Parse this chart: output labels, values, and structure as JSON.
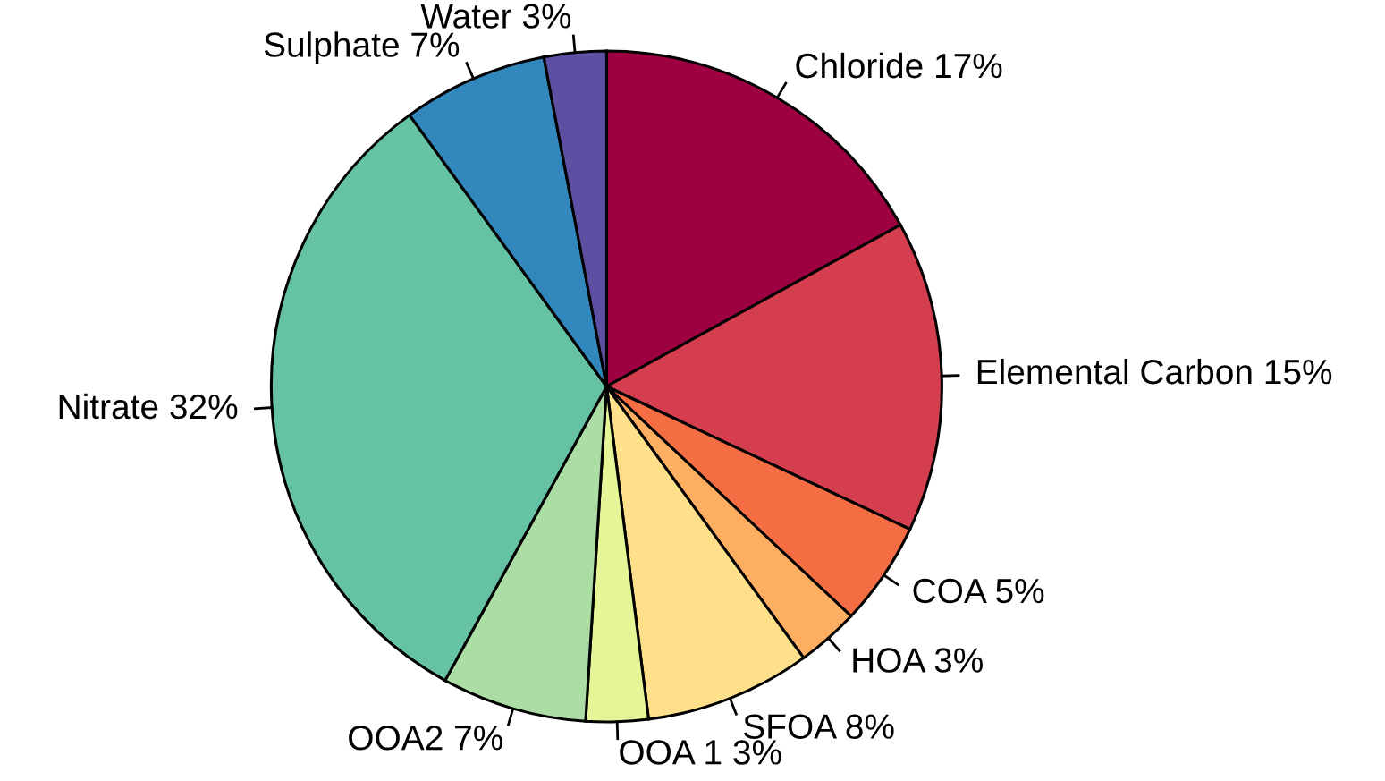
{
  "chart_data": {
    "type": "pie",
    "categories": [
      "Chloride",
      "Elemental Carbon",
      "COA",
      "HOA",
      "SFOA",
      "OOA 1",
      "OOA2",
      "Nitrate",
      "Sulphate",
      "Water"
    ],
    "values": [
      17,
      15,
      5,
      3,
      8,
      3,
      7,
      32,
      7,
      3
    ],
    "value_labels": [
      "17%",
      "15%",
      "5%",
      "3%",
      "8%",
      "3%",
      "7%",
      "32%",
      "7%",
      "3%"
    ],
    "colors": [
      "#9e0142",
      "#d53e4f",
      "#f46d43",
      "#fdae61",
      "#fee08b",
      "#e6f598",
      "#abdda4",
      "#66c2a5",
      "#3288bd",
      "#5e4fa2"
    ],
    "legend": false
  }
}
